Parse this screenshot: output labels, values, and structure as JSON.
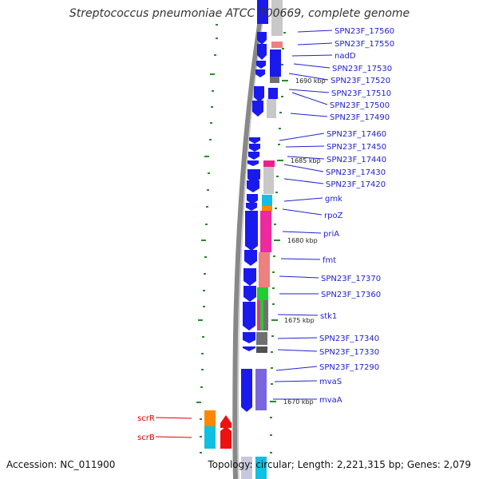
{
  "title": "Streptococcus pneumoniae ATCC 700669, complete genome",
  "accession": "Accession: NC_011900",
  "summary": {
    "topology": "Topology: circular",
    "length": "Length: 2,221,315 bp",
    "genes": "Genes: 2,079"
  },
  "colors": {
    "label_blue": "#2222cc",
    "label_red": "#dd0000",
    "cds_blue": "#1111ee",
    "cds_red": "#ee1111"
  },
  "kbp_markers": [
    "1690 kbp",
    "1685 kbp",
    "1680 kbp",
    "1675 kbp",
    "1670 kbp"
  ],
  "genes_blue": [
    "SPN23F_17560",
    "SPN23F_17550",
    "nadD",
    "SPN23F_17530",
    "SPN23F_17520",
    "SPN23F_17510",
    "SPN23F_17500",
    "SPN23F_17490",
    "SPN23F_17460",
    "SPN23F_17450",
    "SPN23F_17440",
    "SPN23F_17430",
    "SPN23F_17420",
    "gmk",
    "rpoZ",
    "priA",
    "fmt",
    "SPN23F_17370",
    "SPN23F_17360",
    "stk1",
    "SPN23F_17340",
    "SPN23F_17330",
    "SPN23F_17290",
    "mvaS",
    "mvaA"
  ],
  "genes_red": [
    "scrR",
    "scrB"
  ]
}
